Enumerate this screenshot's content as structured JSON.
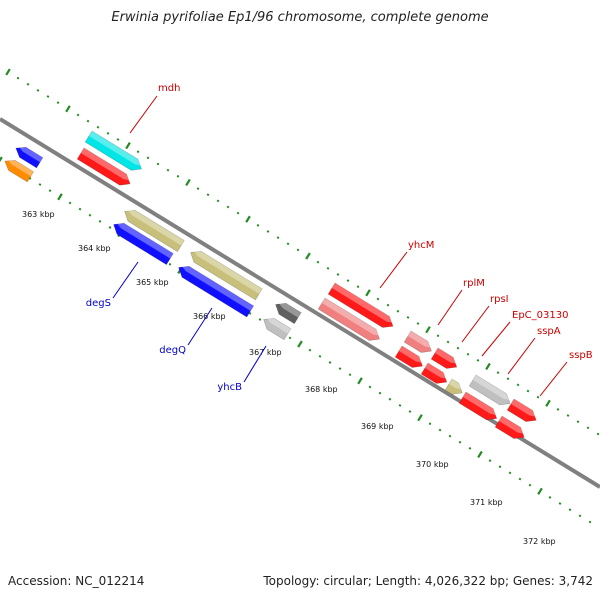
{
  "title": "Erwinia pyrifoliae Ep1/96 chromosome, complete genome",
  "footer": {
    "accession": "Accession: NC_012214",
    "summary": "Topology: circular; Length: 4,026,322 bp; Genes: 3,742"
  },
  "kbp_labels": [
    "363 kbp",
    "364 kbp",
    "365 kbp",
    "366 kbp",
    "367 kbp",
    "368 kbp",
    "369 kbp",
    "370 kbp",
    "371 kbp",
    "372 kbp"
  ],
  "colors": {
    "backbone": "#808080",
    "tick": "#228B22",
    "forward_label": "#cc0000",
    "reverse_label": "#0000cc"
  },
  "gene_labels": [
    {
      "name": "mdh",
      "strand": "forward"
    },
    {
      "name": "yhcM",
      "strand": "forward"
    },
    {
      "name": "rplM",
      "strand": "forward"
    },
    {
      "name": "rpsI",
      "strand": "forward"
    },
    {
      "name": "EpC_03130",
      "strand": "forward"
    },
    {
      "name": "sspA",
      "strand": "forward"
    },
    {
      "name": "sspB",
      "strand": "forward"
    },
    {
      "name": "degS",
      "strand": "reverse"
    },
    {
      "name": "degQ",
      "strand": "reverse"
    },
    {
      "name": "yhcB",
      "strand": "reverse"
    }
  ],
  "features": [
    {
      "kind": "forward-gene",
      "color": "#00e5e5"
    },
    {
      "kind": "forward-cds",
      "color": "#ff1a1a"
    },
    {
      "kind": "reverse-gene",
      "color": "#1010ff"
    },
    {
      "kind": "reverse-other",
      "color": "#ff8c00"
    },
    {
      "kind": "reverse-cds",
      "color": "#c8c07a"
    },
    {
      "kind": "reverse-gene",
      "color": "#1010ff"
    },
    {
      "kind": "reverse-cds",
      "color": "#c8c07a"
    },
    {
      "kind": "reverse-gene",
      "color": "#1010ff"
    },
    {
      "kind": "reverse-other",
      "color": "#606060"
    },
    {
      "kind": "forward-gene",
      "color": "#c0c0c0"
    },
    {
      "kind": "forward-cds",
      "color": "#ff1a1a"
    },
    {
      "kind": "forward-rrna",
      "color": "#f08080"
    },
    {
      "kind": "forward-rrna",
      "color": "#f08080"
    },
    {
      "kind": "forward-cds",
      "color": "#ff1a1a"
    },
    {
      "kind": "forward-cds",
      "color": "#ff1a1a"
    },
    {
      "kind": "forward-cds",
      "color": "#ff1a1a"
    },
    {
      "kind": "forward-other",
      "color": "#c8c07a"
    },
    {
      "kind": "forward-gene",
      "color": "#c0c0c0"
    },
    {
      "kind": "forward-cds",
      "color": "#ff1a1a"
    },
    {
      "kind": "forward-cds",
      "color": "#ff1a1a"
    },
    {
      "kind": "forward-cds",
      "color": "#ff1a1a"
    }
  ]
}
